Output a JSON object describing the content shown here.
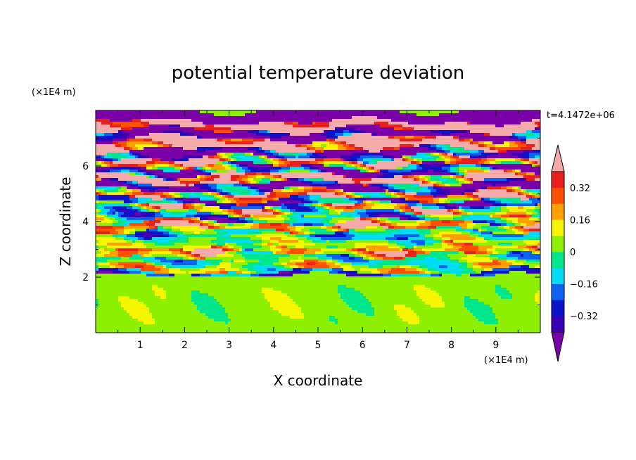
{
  "chart_data": {
    "type": "heatmap",
    "title": "potential temperature deviation",
    "xlabel": "X coordinate",
    "ylabel": "Z coordinate",
    "x_unit": "(×1E4 m)",
    "y_unit": "(×1E4 m)",
    "time_label": "t=4.1472e+06",
    "xlim": [
      0,
      10
    ],
    "ylim": [
      0,
      8
    ],
    "x_ticks": [
      1,
      2,
      3,
      4,
      5,
      6,
      7,
      8,
      9
    ],
    "x_tick_labels": [
      "1",
      "2",
      "3",
      "4",
      "5",
      "6",
      "7",
      "8",
      "9"
    ],
    "y_ticks": [
      2,
      4,
      6
    ],
    "y_tick_labels": [
      "2",
      "4",
      "6"
    ],
    "colorbar": {
      "levels": [
        -0.4,
        -0.32,
        -0.24,
        -0.16,
        -0.08,
        0,
        0.08,
        0.16,
        0.24,
        0.32,
        0.4
      ],
      "colors": [
        "#7a00a8",
        "#3c00b4",
        "#0a14c8",
        "#0a64f0",
        "#00dcf5",
        "#00e68c",
        "#8cf000",
        "#f5f500",
        "#ffa000",
        "#ff5000",
        "#eb1e1e",
        "#f5aaaa"
      ],
      "tick_values": [
        -0.32,
        -0.16,
        0,
        0.16,
        0.32
      ],
      "tick_labels": [
        "−0.32",
        "−0.16",
        "0",
        "0.16",
        "0.32"
      ],
      "extend": "both"
    },
    "z_bands": [
      {
        "z0": 7.6,
        "z1": 8.0,
        "value": -0.45,
        "amp": 0.05
      },
      {
        "z0": 7.3,
        "z1": 7.6,
        "value": 0.45,
        "amp": 0.18
      },
      {
        "z0": 7.0,
        "z1": 7.3,
        "value": -0.42,
        "amp": 0.35
      },
      {
        "z0": 6.6,
        "z1": 7.0,
        "value": 0.42,
        "amp": 0.35
      },
      {
        "z0": 6.3,
        "z1": 6.6,
        "value": -0.42,
        "amp": 0.4
      },
      {
        "z0": 6.0,
        "z1": 6.3,
        "value": 0.35,
        "amp": 0.5
      },
      {
        "z0": 5.7,
        "z1": 6.0,
        "value": -0.3,
        "amp": 0.55
      },
      {
        "z0": 5.4,
        "z1": 5.7,
        "value": 0.4,
        "amp": 0.5
      },
      {
        "z0": 5.1,
        "z1": 5.4,
        "value": -0.4,
        "amp": 0.4
      },
      {
        "z0": 4.8,
        "z1": 5.1,
        "value": 0.3,
        "amp": 0.45
      },
      {
        "z0": 4.6,
        "z1": 4.8,
        "value": -0.3,
        "amp": 0.3
      },
      {
        "z0": 4.3,
        "z1": 4.6,
        "value": 0.12,
        "amp": 0.45
      },
      {
        "z0": 4.0,
        "z1": 4.3,
        "value": -0.12,
        "amp": 0.35
      },
      {
        "z0": 3.7,
        "z1": 4.0,
        "value": 0.3,
        "amp": 0.35
      },
      {
        "z0": 3.4,
        "z1": 3.7,
        "value": -0.1,
        "amp": 0.25
      },
      {
        "z0": 3.1,
        "z1": 3.4,
        "value": 0.02,
        "amp": 0.2
      },
      {
        "z0": 2.8,
        "z1": 3.1,
        "value": 0.25,
        "amp": 0.3
      },
      {
        "z0": 2.5,
        "z1": 2.8,
        "value": -0.05,
        "amp": 0.2
      },
      {
        "z0": 2.2,
        "z1": 2.5,
        "value": 0.08,
        "amp": 0.25
      },
      {
        "z0": 2.0,
        "z1": 2.2,
        "value": -0.25,
        "amp": 0.2
      },
      {
        "z0": 0.0,
        "z1": 2.0,
        "value": 0.06,
        "amp": 0.05
      }
    ]
  }
}
